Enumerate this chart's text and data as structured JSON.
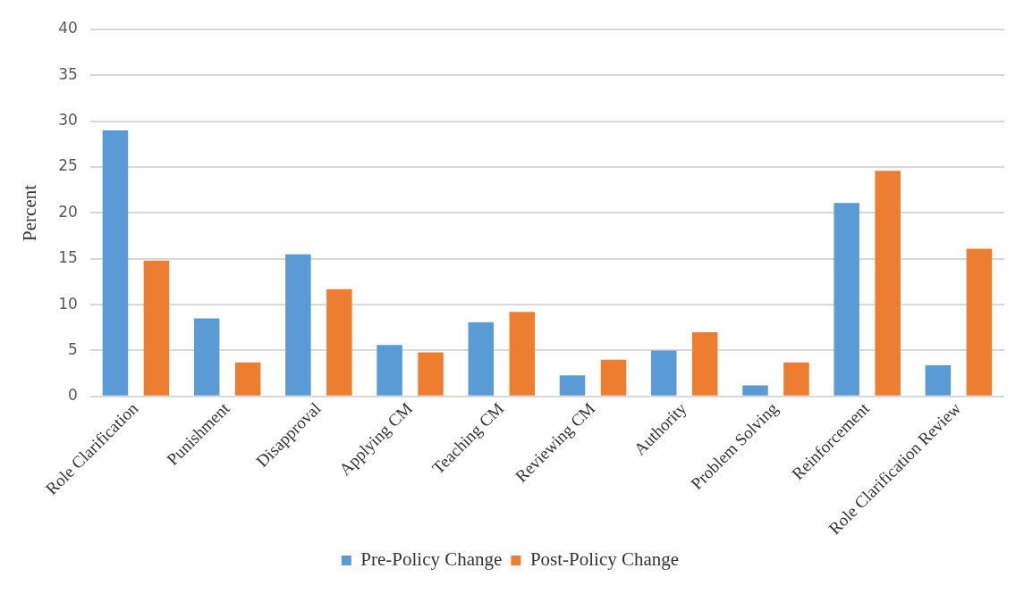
{
  "chart_data": {
    "type": "bar",
    "ylabel": "Percent",
    "categories": [
      "Role Clarification",
      "Punishment",
      "Disapproval",
      "Applying CM",
      "Teaching CM",
      "Reviewing CM",
      "Authority",
      "Problem Solving",
      "Reinforcement",
      "Role Clarification Review"
    ],
    "series": [
      {
        "name": "Pre-Policy Change",
        "color": "#5b9bd5",
        "values": [
          29.0,
          8.5,
          15.5,
          5.6,
          8.1,
          2.3,
          5.0,
          1.2,
          21.1,
          3.4
        ]
      },
      {
        "name": "Post-Policy Change",
        "color": "#ed7d31",
        "values": [
          14.8,
          3.7,
          11.7,
          4.8,
          9.2,
          4.0,
          7.0,
          3.7,
          24.6,
          16.1
        ]
      }
    ],
    "ylim": [
      0,
      40
    ],
    "yticks": [
      0,
      5,
      10,
      15,
      20,
      25,
      30,
      35,
      40
    ],
    "grid": "y",
    "legend": "bottom"
  }
}
